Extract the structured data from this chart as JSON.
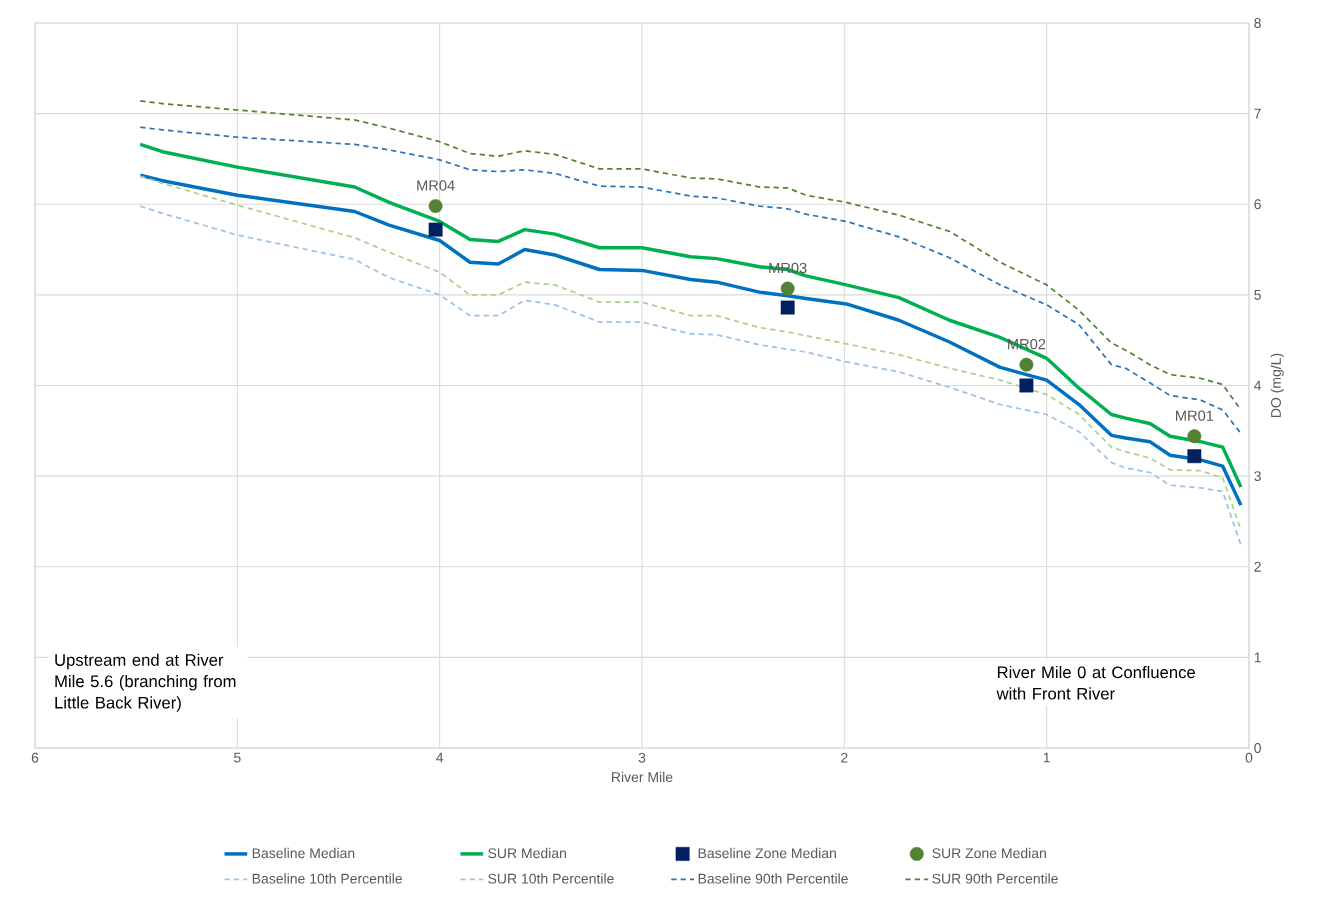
{
  "chart_data": {
    "type": "line",
    "xlabel": "River Mile",
    "ylabel": "DO (mg/L)",
    "xlim": [
      6,
      0
    ],
    "ylim": [
      0,
      8
    ],
    "xticks": [
      6,
      5,
      4,
      3,
      2,
      1,
      0
    ],
    "yticks": [
      0,
      1,
      2,
      3,
      4,
      5,
      6,
      7,
      8
    ],
    "grid": true,
    "legend": "bottom",
    "x": [
      5.48,
      5.37,
      5.0,
      4.42,
      4.25,
      4.0,
      3.85,
      3.71,
      3.58,
      3.43,
      3.21,
      3.0,
      2.76,
      2.63,
      2.42,
      2.28,
      2.19,
      1.99,
      1.73,
      1.48,
      1.23,
      1.0,
      0.84,
      0.68,
      0.61,
      0.49,
      0.39,
      0.24,
      0.13,
      0.04
    ],
    "series": [
      {
        "name": "Baseline Median",
        "color": "#0070c0",
        "line_style": "solid",
        "marker": "none",
        "values": [
          6.32,
          6.26,
          6.1,
          5.92,
          5.77,
          5.6,
          5.36,
          5.34,
          5.5,
          5.44,
          5.28,
          5.27,
          5.17,
          5.14,
          5.03,
          4.99,
          4.96,
          4.9,
          4.72,
          4.48,
          4.2,
          4.06,
          3.79,
          3.45,
          3.42,
          3.38,
          3.23,
          3.18,
          3.11,
          2.68
        ]
      },
      {
        "name": "SUR Median",
        "color": "#00b050",
        "line_style": "solid",
        "marker": "none",
        "values": [
          6.66,
          6.58,
          6.41,
          6.19,
          6.02,
          5.81,
          5.61,
          5.59,
          5.72,
          5.67,
          5.52,
          5.52,
          5.42,
          5.4,
          5.31,
          5.28,
          5.21,
          5.11,
          4.97,
          4.72,
          4.53,
          4.3,
          3.97,
          3.68,
          3.64,
          3.58,
          3.44,
          3.38,
          3.32,
          2.88
        ]
      },
      {
        "name": "Baseline Zone Median",
        "type": "scatter",
        "color": "#002060",
        "marker": "square",
        "x": [
          4.02,
          2.28,
          1.1,
          0.27
        ],
        "values": [
          5.72,
          4.86,
          4.0,
          3.22
        ]
      },
      {
        "name": "SUR Zone Median",
        "type": "scatter",
        "color": "#548235",
        "marker": "circle",
        "x": [
          4.02,
          2.28,
          1.1,
          0.27
        ],
        "values": [
          5.98,
          5.07,
          4.23,
          3.44
        ]
      },
      {
        "name": "Baseline 10th Percentile",
        "color": "#9dc3e6",
        "line_style": "dashed",
        "marker": "none",
        "values": [
          5.98,
          5.9,
          5.66,
          5.39,
          5.19,
          5.0,
          4.77,
          4.77,
          4.94,
          4.89,
          4.7,
          4.7,
          4.57,
          4.56,
          4.45,
          4.4,
          4.37,
          4.26,
          4.15,
          3.98,
          3.79,
          3.68,
          3.49,
          3.15,
          3.09,
          3.04,
          2.9,
          2.87,
          2.83,
          2.24
        ]
      },
      {
        "name": "SUR 10th Percentile",
        "color": "#a9d18e",
        "line_style": "dashed",
        "marker": "none",
        "values": [
          6.31,
          6.23,
          5.99,
          5.63,
          5.47,
          5.25,
          5.0,
          5.0,
          5.14,
          5.11,
          4.92,
          4.92,
          4.77,
          4.77,
          4.64,
          4.59,
          4.55,
          4.46,
          4.34,
          4.19,
          4.06,
          3.9,
          3.68,
          3.32,
          3.27,
          3.2,
          3.07,
          3.06,
          2.98,
          2.41
        ]
      },
      {
        "name": "Baseline 90th Percentile",
        "color": "#2e75b6",
        "line_style": "dashed",
        "marker": "none",
        "values": [
          6.85,
          6.82,
          6.74,
          6.66,
          6.6,
          6.49,
          6.38,
          6.36,
          6.38,
          6.34,
          6.2,
          6.19,
          6.09,
          6.07,
          5.98,
          5.95,
          5.89,
          5.81,
          5.64,
          5.41,
          5.11,
          4.89,
          4.67,
          4.23,
          4.19,
          4.03,
          3.89,
          3.84,
          3.73,
          3.47
        ]
      },
      {
        "name": "SUR 90th Percentile",
        "color": "#548235",
        "line_style": "dashed",
        "marker": "none",
        "values": [
          7.14,
          7.11,
          7.04,
          6.93,
          6.84,
          6.69,
          6.56,
          6.53,
          6.59,
          6.55,
          6.39,
          6.39,
          6.29,
          6.28,
          6.19,
          6.18,
          6.1,
          6.02,
          5.88,
          5.7,
          5.36,
          5.11,
          4.83,
          4.47,
          4.39,
          4.23,
          4.12,
          4.08,
          4.01,
          3.73
        ]
      }
    ],
    "annotations": [
      {
        "text": "MR04",
        "x": 4.02,
        "y": 5.98
      },
      {
        "text": "MR03",
        "x": 2.28,
        "y": 5.07
      },
      {
        "text": "MR02",
        "x": 1.1,
        "y": 4.23
      },
      {
        "text": "MR01",
        "x": 0.27,
        "y": 3.44
      },
      "Upstream end at River Mile 5.6 (branching from Little Back River)",
      "River Mile 0 at Confluence with Front River"
    ]
  }
}
